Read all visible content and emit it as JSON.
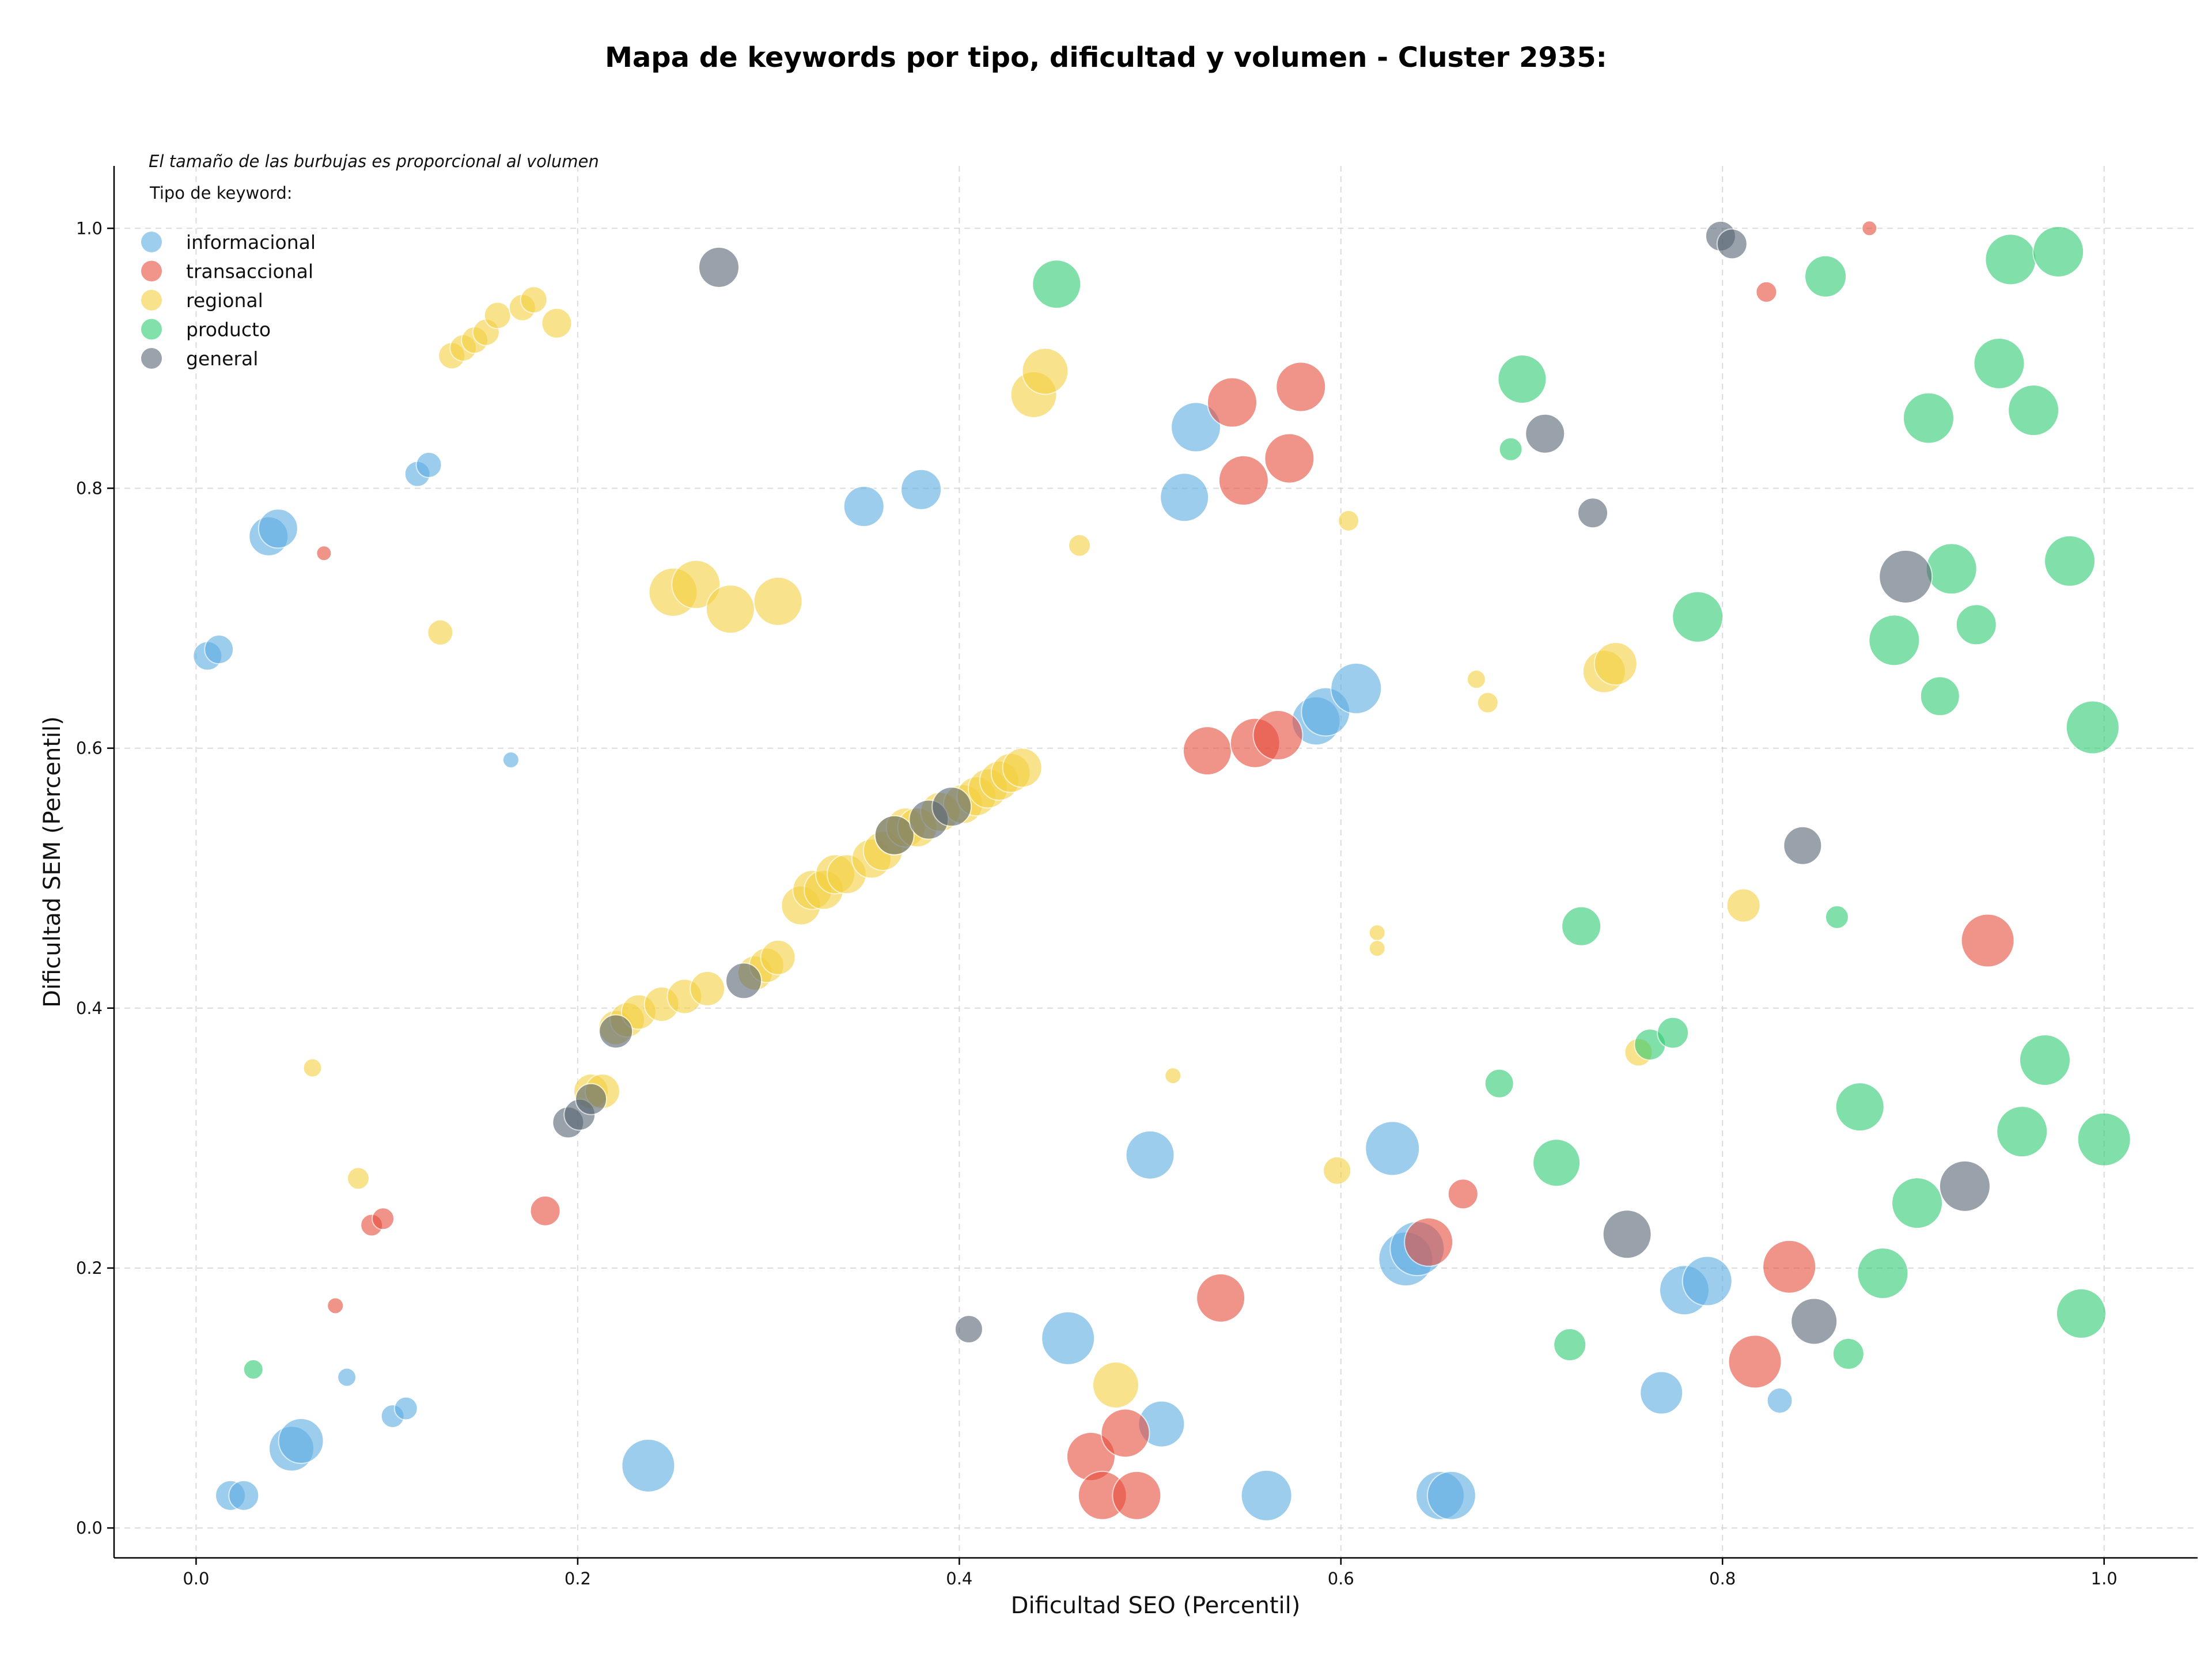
{
  "chart_data": {
    "type": "scatter",
    "title": "Mapa de keywords por tipo, dificultad y volumen - Cluster 2935:",
    "xlabel": "Dificultad SEO (Percentil)",
    "ylabel": "Dificultad SEM (Percentil)",
    "note": "El tamaño de las burbujas es proporcional al volumen",
    "legend_title": "Tipo de keyword:",
    "legend_position": "top-left",
    "grid": true,
    "xlim": [
      -0.043,
      1.049
    ],
    "ylim": [
      -0.023,
      1.048
    ],
    "x_ticks": [
      "0.0",
      "0.2",
      "0.4",
      "0.6",
      "0.8",
      "1.0"
    ],
    "y_ticks": [
      "0.0",
      "0.2",
      "0.4",
      "0.6",
      "0.8",
      "1.0"
    ],
    "size_range": [
      10,
      46
    ],
    "series": [
      {
        "name": "informacional",
        "color": "#5DADE2",
        "points": [
          [
            0.006,
            0.671,
            25
          ],
          [
            0.012,
            0.676,
            25
          ],
          [
            0.038,
            0.763,
            34
          ],
          [
            0.043,
            0.769,
            34
          ],
          [
            0.116,
            0.811,
            22
          ],
          [
            0.122,
            0.818,
            22
          ],
          [
            0.165,
            0.591,
            14
          ],
          [
            0.35,
            0.786,
            35
          ],
          [
            0.38,
            0.799,
            35
          ],
          [
            0.518,
            0.793,
            42
          ],
          [
            0.524,
            0.847,
            43
          ],
          [
            0.587,
            0.621,
            42
          ],
          [
            0.592,
            0.628,
            42
          ],
          [
            0.608,
            0.646,
            44
          ],
          [
            0.018,
            0.025,
            26
          ],
          [
            0.025,
            0.025,
            26
          ],
          [
            0.05,
            0.061,
            39
          ],
          [
            0.055,
            0.067,
            39
          ],
          [
            0.079,
            0.116,
            16
          ],
          [
            0.103,
            0.086,
            20
          ],
          [
            0.11,
            0.092,
            20
          ],
          [
            0.237,
            0.048,
            46
          ],
          [
            0.5,
            0.287,
            42
          ],
          [
            0.506,
            0.08,
            40
          ],
          [
            0.457,
            0.146,
            46
          ],
          [
            0.561,
            0.025,
            44
          ],
          [
            0.627,
            0.292,
            47
          ],
          [
            0.634,
            0.207,
            47
          ],
          [
            0.64,
            0.215,
            47
          ],
          [
            0.652,
            0.025,
            42
          ],
          [
            0.658,
            0.025,
            42
          ],
          [
            0.768,
            0.104,
            37
          ],
          [
            0.78,
            0.183,
            43
          ],
          [
            0.792,
            0.19,
            43
          ],
          [
            0.83,
            0.098,
            22
          ]
        ]
      },
      {
        "name": "transaccional",
        "color": "#E74C3C",
        "points": [
          [
            0.067,
            0.75,
            13
          ],
          [
            0.092,
            0.233,
            19
          ],
          [
            0.098,
            0.238,
            19
          ],
          [
            0.073,
            0.171,
            14
          ],
          [
            0.183,
            0.244,
            26
          ],
          [
            0.53,
            0.598,
            42
          ],
          [
            0.543,
            0.866,
            43
          ],
          [
            0.549,
            0.806,
            43
          ],
          [
            0.555,
            0.604,
            43
          ],
          [
            0.567,
            0.61,
            43
          ],
          [
            0.573,
            0.823,
            43
          ],
          [
            0.579,
            0.878,
            43
          ],
          [
            0.646,
            0.22,
            42
          ],
          [
            0.664,
            0.257,
            26
          ],
          [
            0.537,
            0.177,
            42
          ],
          [
            0.469,
            0.055,
            42
          ],
          [
            0.475,
            0.025,
            42
          ],
          [
            0.487,
            0.073,
            42
          ],
          [
            0.493,
            0.025,
            42
          ],
          [
            0.817,
            0.128,
            46
          ],
          [
            0.823,
            0.951,
            18
          ],
          [
            0.835,
            0.201,
            46
          ],
          [
            0.877,
            1.0,
            13
          ],
          [
            0.939,
            0.452,
            46
          ]
        ]
      },
      {
        "name": "regional",
        "color": "#F4D03F",
        "points": [
          [
            0.134,
            0.902,
            23
          ],
          [
            0.14,
            0.908,
            23
          ],
          [
            0.146,
            0.914,
            23
          ],
          [
            0.152,
            0.92,
            23
          ],
          [
            0.158,
            0.933,
            23
          ],
          [
            0.171,
            0.939,
            23
          ],
          [
            0.177,
            0.945,
            23
          ],
          [
            0.189,
            0.927,
            26
          ],
          [
            0.128,
            0.689,
            22
          ],
          [
            0.061,
            0.354,
            16
          ],
          [
            0.085,
            0.269,
            19
          ],
          [
            0.25,
            0.72,
            42
          ],
          [
            0.262,
            0.726,
            42
          ],
          [
            0.28,
            0.707,
            42
          ],
          [
            0.305,
            0.713,
            42
          ],
          [
            0.439,
            0.872,
            40
          ],
          [
            0.445,
            0.89,
            40
          ],
          [
            0.463,
            0.756,
            19
          ],
          [
            0.207,
            0.336,
            30
          ],
          [
            0.213,
            0.336,
            30
          ],
          [
            0.22,
            0.385,
            30
          ],
          [
            0.226,
            0.391,
            30
          ],
          [
            0.232,
            0.397,
            30
          ],
          [
            0.244,
            0.403,
            30
          ],
          [
            0.256,
            0.409,
            30
          ],
          [
            0.268,
            0.415,
            30
          ],
          [
            0.293,
            0.427,
            30
          ],
          [
            0.299,
            0.433,
            30
          ],
          [
            0.305,
            0.439,
            30
          ],
          [
            0.317,
            0.479,
            34
          ],
          [
            0.323,
            0.491,
            34
          ],
          [
            0.329,
            0.491,
            34
          ],
          [
            0.335,
            0.503,
            34
          ],
          [
            0.341,
            0.503,
            34
          ],
          [
            0.354,
            0.515,
            34
          ],
          [
            0.36,
            0.521,
            34
          ],
          [
            0.366,
            0.533,
            34
          ],
          [
            0.372,
            0.539,
            34
          ],
          [
            0.378,
            0.539,
            34
          ],
          [
            0.39,
            0.551,
            34
          ],
          [
            0.402,
            0.557,
            34
          ],
          [
            0.409,
            0.563,
            34
          ],
          [
            0.415,
            0.569,
            34
          ],
          [
            0.421,
            0.575,
            34
          ],
          [
            0.427,
            0.581,
            34
          ],
          [
            0.433,
            0.585,
            34
          ],
          [
            0.512,
            0.348,
            14
          ],
          [
            0.482,
            0.11,
            40
          ],
          [
            0.598,
            0.275,
            24
          ],
          [
            0.604,
            0.775,
            18
          ],
          [
            0.619,
            0.458,
            14
          ],
          [
            0.619,
            0.446,
            14
          ],
          [
            0.671,
            0.653,
            16
          ],
          [
            0.677,
            0.635,
            18
          ],
          [
            0.738,
            0.659,
            37
          ],
          [
            0.744,
            0.665,
            37
          ],
          [
            0.756,
            0.366,
            24
          ],
          [
            0.811,
            0.479,
            29
          ]
        ]
      },
      {
        "name": "producto",
        "color": "#2ECC71",
        "points": [
          [
            0.03,
            0.122,
            17
          ],
          [
            0.451,
            0.957,
            42
          ],
          [
            0.683,
            0.342,
            25
          ],
          [
            0.689,
            0.83,
            20
          ],
          [
            0.695,
            0.884,
            42
          ],
          [
            0.713,
            0.281,
            41
          ],
          [
            0.72,
            0.141,
            28
          ],
          [
            0.726,
            0.463,
            34
          ],
          [
            0.762,
            0.372,
            27
          ],
          [
            0.774,
            0.381,
            27
          ],
          [
            0.787,
            0.701,
            44
          ],
          [
            0.854,
            0.963,
            36
          ],
          [
            0.86,
            0.47,
            20
          ],
          [
            0.866,
            0.134,
            27
          ],
          [
            0.872,
            0.324,
            42
          ],
          [
            0.884,
            0.196,
            44
          ],
          [
            0.89,
            0.683,
            44
          ],
          [
            0.902,
            0.25,
            44
          ],
          [
            0.908,
            0.854,
            44
          ],
          [
            0.914,
            0.64,
            34
          ],
          [
            0.92,
            0.738,
            44
          ],
          [
            0.933,
            0.695,
            35
          ],
          [
            0.945,
            0.896,
            44
          ],
          [
            0.951,
            0.976,
            44
          ],
          [
            0.957,
            0.305,
            44
          ],
          [
            0.963,
            0.86,
            44
          ],
          [
            0.969,
            0.36,
            44
          ],
          [
            0.976,
            0.982,
            44
          ],
          [
            0.982,
            0.744,
            44
          ],
          [
            0.988,
            0.165,
            43
          ],
          [
            0.994,
            0.616,
            46
          ],
          [
            1.0,
            0.299,
            46
          ]
        ]
      },
      {
        "name": "general",
        "color": "#566573",
        "points": [
          [
            0.274,
            0.97,
            35
          ],
          [
            0.195,
            0.312,
            27
          ],
          [
            0.201,
            0.318,
            27
          ],
          [
            0.207,
            0.33,
            27
          ],
          [
            0.22,
            0.382,
            29
          ],
          [
            0.287,
            0.421,
            31
          ],
          [
            0.366,
            0.533,
            34
          ],
          [
            0.384,
            0.545,
            34
          ],
          [
            0.396,
            0.555,
            34
          ],
          [
            0.405,
            0.153,
            24
          ],
          [
            0.707,
            0.842,
            34
          ],
          [
            0.732,
            0.781,
            26
          ],
          [
            0.75,
            0.226,
            42
          ],
          [
            0.799,
            0.994,
            26
          ],
          [
            0.805,
            0.988,
            26
          ],
          [
            0.842,
            0.525,
            33
          ],
          [
            0.848,
            0.159,
            40
          ],
          [
            0.896,
            0.732,
            46
          ],
          [
            0.927,
            0.263,
            44
          ]
        ]
      }
    ]
  }
}
